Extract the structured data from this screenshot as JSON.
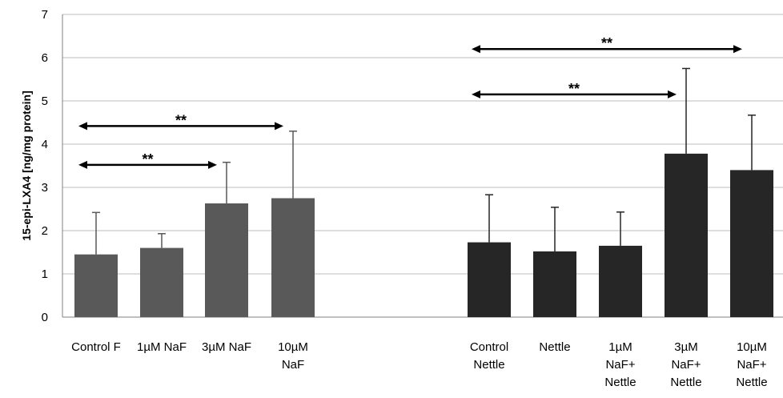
{
  "chart_data": {
    "type": "bar",
    "ylabel": "15-epi-LXA4 [ng/mg protein]",
    "ylim": [
      0,
      7
    ],
    "yticks": [
      0,
      1,
      2,
      3,
      4,
      5,
      6,
      7
    ],
    "grid": true,
    "categories": [
      [
        "Control F"
      ],
      [
        "1µM NaF"
      ],
      [
        "3µM NaF"
      ],
      [
        "10µM",
        "NaF"
      ],
      [
        "Control",
        "Nettle"
      ],
      [
        "Nettle"
      ],
      [
        "1µM",
        "NaF+",
        "Nettle"
      ],
      [
        "3µM",
        "NaF+",
        "Nettle"
      ],
      [
        "10µM",
        "NaF+",
        "Nettle"
      ]
    ],
    "values": [
      1.45,
      1.6,
      2.63,
      2.75,
      1.73,
      1.52,
      1.65,
      3.78,
      3.4
    ],
    "errors": [
      0.97,
      0.33,
      0.95,
      1.55,
      1.1,
      1.02,
      0.78,
      1.97,
      1.27
    ],
    "group_colors": [
      "#595959",
      "#595959",
      "#595959",
      "#595959",
      "#262626",
      "#262626",
      "#262626",
      "#262626",
      "#262626"
    ],
    "significance": [
      {
        "from": 0,
        "to": 2,
        "level": 3.52,
        "label": "**"
      },
      {
        "from": 0,
        "to": 3,
        "level": 4.42,
        "label": "**"
      },
      {
        "from": 4,
        "to": 7,
        "level": 5.15,
        "label": "**"
      },
      {
        "from": 4,
        "to": 8,
        "level": 6.2,
        "label": "**"
      }
    ]
  }
}
